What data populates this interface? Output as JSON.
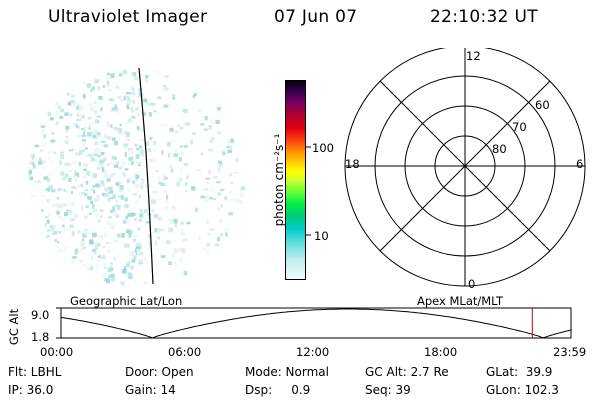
{
  "header": {
    "instrument": "Ultraviolet Imager",
    "date": "07 Jun 07",
    "time": "22:10:32 UT"
  },
  "colorbar": {
    "label": "photon cm⁻²s⁻¹",
    "ticks": [
      "100",
      "10"
    ]
  },
  "polar": {
    "mlt_labels": {
      "top": "12",
      "left": "18",
      "right": "6",
      "bottom": "0"
    },
    "lat_labels": [
      "60",
      "70",
      "80"
    ]
  },
  "orbit": {
    "left_label": "Geographic Lat/Lon",
    "right_label": "Apex MLat/MLT",
    "ylabel": "GC Alt",
    "y_ticks": [
      "9.0",
      "1.8"
    ],
    "x_ticks": [
      "00:00",
      "06:00",
      "12:00",
      "18:00",
      "23:59"
    ],
    "current_time_hours": 22.18,
    "marker_color": "#cc0000"
  },
  "info": {
    "flt": "Flt: LBHL",
    "ip": "IP: 36.0",
    "door": "Door: Open",
    "gain": "Gain: 14",
    "mode": "Mode: Normal",
    "dsp": "Dsp:     0.9",
    "gcalt": "GC Alt: 2.7 Re",
    "seq": "Seq: 39",
    "glat": "GLat:  39.9",
    "glon": "GLon: 102.3"
  }
}
